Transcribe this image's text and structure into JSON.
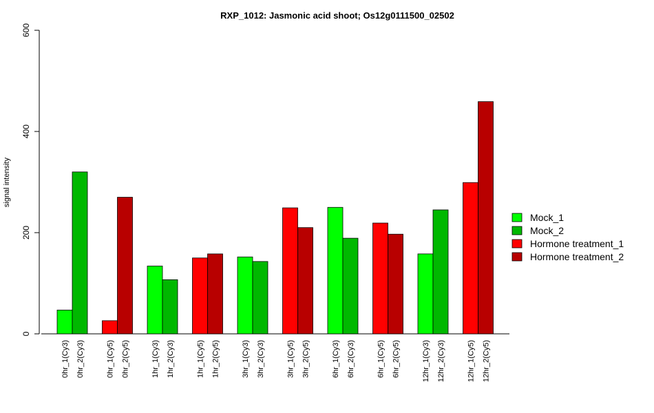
{
  "chart_data": {
    "type": "bar",
    "title": "RXP_1012: Jasmonic acid shoot; Os12g0111500_02502",
    "xlabel": "",
    "ylabel": "signal intensity",
    "ylim": [
      0,
      600
    ],
    "yticks": [
      0,
      200,
      400,
      600
    ],
    "legend_position": "right",
    "legend": [
      {
        "name": "Mock_1",
        "color": "#00FF00"
      },
      {
        "name": "Mock_2",
        "color": "#00B800"
      },
      {
        "name": "Hormone treatment_1",
        "color": "#FF0000"
      },
      {
        "name": "Hormone treatment_2",
        "color": "#B80000"
      }
    ],
    "groups": [
      {
        "bars": [
          {
            "label": "0hr_1(Cy3)",
            "value": 47,
            "color": "#00FF00"
          },
          {
            "label": "0hr_2(Cy3)",
            "value": 320,
            "color": "#00B800"
          }
        ]
      },
      {
        "bars": [
          {
            "label": "0hr_1(Cy5)",
            "value": 26,
            "color": "#FF0000"
          },
          {
            "label": "0hr_2(Cy5)",
            "value": 270,
            "color": "#B80000"
          }
        ]
      },
      {
        "bars": [
          {
            "label": "1hr_1(Cy3)",
            "value": 134,
            "color": "#00FF00"
          },
          {
            "label": "1hr_2(Cy3)",
            "value": 107,
            "color": "#00B800"
          }
        ]
      },
      {
        "bars": [
          {
            "label": "1hr_1(Cy5)",
            "value": 150,
            "color": "#FF0000"
          },
          {
            "label": "1hr_2(Cy5)",
            "value": 158,
            "color": "#B80000"
          }
        ]
      },
      {
        "bars": [
          {
            "label": "3hr_1(Cy3)",
            "value": 152,
            "color": "#00FF00"
          },
          {
            "label": "3hr_2(Cy3)",
            "value": 143,
            "color": "#00B800"
          }
        ]
      },
      {
        "bars": [
          {
            "label": "3hr_1(Cy5)",
            "value": 249,
            "color": "#FF0000"
          },
          {
            "label": "3hr_2(Cy5)",
            "value": 210,
            "color": "#B80000"
          }
        ]
      },
      {
        "bars": [
          {
            "label": "6hr_1(Cy3)",
            "value": 250,
            "color": "#00FF00"
          },
          {
            "label": "6hr_2(Cy3)",
            "value": 189,
            "color": "#00B800"
          }
        ]
      },
      {
        "bars": [
          {
            "label": "6hr_1(Cy5)",
            "value": 219,
            "color": "#FF0000"
          },
          {
            "label": "6hr_2(Cy5)",
            "value": 197,
            "color": "#B80000"
          }
        ]
      },
      {
        "bars": [
          {
            "label": "12hr_1(Cy3)",
            "value": 158,
            "color": "#00FF00"
          },
          {
            "label": "12hr_2(Cy3)",
            "value": 245,
            "color": "#00B800"
          }
        ]
      },
      {
        "bars": [
          {
            "label": "12hr_1(Cy5)",
            "value": 299,
            "color": "#FF0000"
          },
          {
            "label": "12hr_2(Cy5)",
            "value": 459,
            "color": "#B80000"
          }
        ]
      }
    ]
  }
}
